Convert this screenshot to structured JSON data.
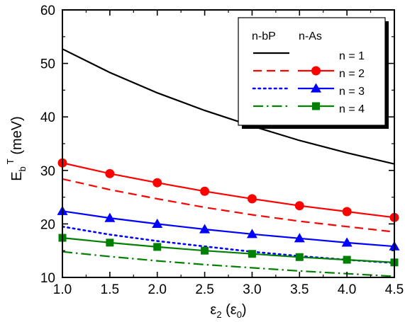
{
  "chart_data": {
    "type": "line",
    "xlabel": {
      "main": "ε",
      "sub": "2",
      "paren_main": "ε",
      "paren_sub": "0"
    },
    "ylabel": {
      "main": "E",
      "sub": "b",
      "sup": "T",
      "unit": "(meV)"
    },
    "xlim": [
      1.0,
      4.5
    ],
    "ylim": [
      10,
      60
    ],
    "xticks": [
      1.0,
      1.5,
      2.0,
      2.5,
      3.0,
      3.5,
      4.0,
      4.5
    ],
    "xtick_labels": [
      "1.0",
      "1.5",
      "2.0",
      "2.5",
      "3.0",
      "3.5",
      "4.0",
      "4.5"
    ],
    "yticks": [
      10,
      20,
      30,
      40,
      50,
      60
    ],
    "ytick_labels": [
      "10",
      "20",
      "30",
      "40",
      "50",
      "60"
    ],
    "grid": false,
    "legend": {
      "placement": "top-right",
      "headers": [
        "n-bP",
        "n-As"
      ],
      "rows": [
        "n = 1",
        "n = 2",
        "n = 3",
        "n = 4"
      ]
    },
    "x": [
      1.0,
      1.5,
      2.0,
      2.5,
      3.0,
      3.5,
      4.0,
      4.5
    ],
    "series": [
      {
        "group": "n-bP",
        "n": 1,
        "color": "#000000",
        "dash": "solid",
        "marker": "none",
        "values": [
          52.7,
          48.3,
          44.5,
          41.2,
          38.3,
          35.6,
          33.3,
          31.2
        ]
      },
      {
        "group": "n-As",
        "n": 2,
        "color": "#ff0000",
        "dash": "solid",
        "marker": "circle",
        "values": [
          31.4,
          29.4,
          27.7,
          26.1,
          24.7,
          23.4,
          22.3,
          21.2
        ]
      },
      {
        "group": "n-bP",
        "n": 2,
        "color": "#ff0000",
        "dash": "dash",
        "marker": "none",
        "values": [
          28.4,
          26.4,
          24.7,
          23.1,
          21.7,
          20.5,
          19.5,
          18.5
        ]
      },
      {
        "group": "n-As",
        "n": 3,
        "color": "#0000ff",
        "dash": "solid",
        "marker": "triangle",
        "values": [
          22.4,
          21.1,
          20.0,
          19.0,
          18.1,
          17.3,
          16.5,
          15.8
        ]
      },
      {
        "group": "n-bP",
        "n": 3,
        "color": "#0000ff",
        "dash": "dot",
        "marker": "none",
        "values": [
          19.5,
          18.0,
          16.8,
          15.8,
          14.8,
          14.0,
          13.3,
          12.7
        ]
      },
      {
        "group": "n-As",
        "n": 4,
        "color": "#008000",
        "dash": "solid",
        "marker": "square",
        "values": [
          17.4,
          16.5,
          15.7,
          15.0,
          14.4,
          13.8,
          13.3,
          12.8
        ]
      },
      {
        "group": "n-bP",
        "n": 4,
        "color": "#008000",
        "dash": "dashdot",
        "marker": "none",
        "values": [
          14.8,
          13.9,
          13.1,
          12.4,
          11.8,
          11.2,
          10.7,
          10.2
        ]
      }
    ]
  }
}
